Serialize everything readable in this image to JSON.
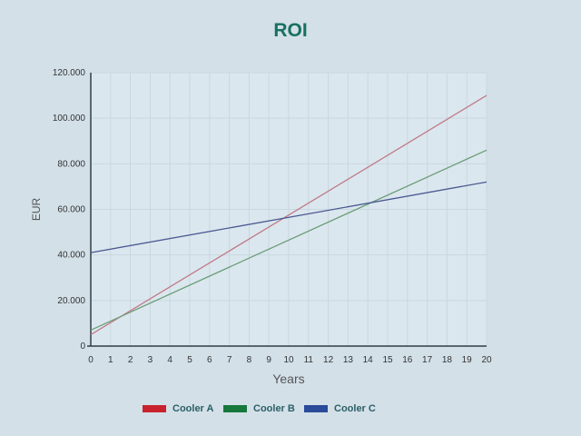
{
  "chart_data": {
    "type": "line",
    "title": "ROI",
    "xlabel": "Years",
    "ylabel": "EUR",
    "x": [
      0,
      20
    ],
    "xlim": [
      0,
      20
    ],
    "ylim": [
      0,
      120000
    ],
    "xticks": [
      "0",
      "1",
      "2",
      "3",
      "4",
      "5",
      "6",
      "7",
      "8",
      "9",
      "10",
      "11",
      "12",
      "13",
      "14",
      "15",
      "16",
      "17",
      "18",
      "19",
      "20"
    ],
    "yticks": [
      {
        "value": 0,
        "label": "0"
      },
      {
        "value": 20000,
        "label": "20.000"
      },
      {
        "value": 40000,
        "label": "40.000"
      },
      {
        "value": 60000,
        "label": "60.000"
      },
      {
        "value": 80000,
        "label": "80.000"
      },
      {
        "value": 100000,
        "label": "100.000"
      },
      {
        "value": 120000,
        "label": "120.000"
      }
    ],
    "grid": true,
    "legend_placement": "bottom",
    "series": [
      {
        "name": "Cooler A",
        "color": "#c8232c",
        "line_color": "#c07a88",
        "values": [
          5000,
          110000
        ]
      },
      {
        "name": "Cooler B",
        "color": "#17773c",
        "line_color": "#6a9e78",
        "values": [
          7000,
          86000
        ]
      },
      {
        "name": "Cooler C",
        "color": "#2a4a9a",
        "line_color": "#4a5a92",
        "values": [
          41000,
          72000
        ]
      }
    ]
  },
  "colors": {
    "title": "#17705f",
    "legend_text": "#2b5f66",
    "axis": "#333d44",
    "tick_text": "#333333"
  }
}
